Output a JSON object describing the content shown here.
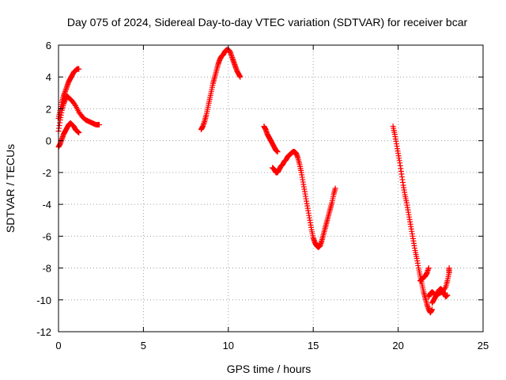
{
  "chart_data": {
    "type": "scatter",
    "title": "Day 075 of 2024, Sidereal Day-to-day VTEC variation (SDTVAR) for receiver bcar",
    "xlabel": "GPS time / hours",
    "ylabel": "SDTVAR / TECUs",
    "xlim": [
      0,
      25
    ],
    "ylim": [
      -12,
      6
    ],
    "xticks": [
      0,
      5,
      10,
      15,
      20,
      25
    ],
    "yticks": [
      -12,
      -10,
      -8,
      -6,
      -4,
      -2,
      0,
      2,
      4,
      6
    ],
    "grid": true,
    "marker": "plus",
    "color": "#ff0000",
    "series": [
      {
        "segments": [
          [
            [
              0.0,
              0.6
            ],
            [
              0.1,
              1.3
            ],
            [
              0.2,
              1.9
            ],
            [
              0.3,
              2.3
            ],
            [
              0.4,
              2.6
            ],
            [
              0.5,
              2.8
            ],
            [
              0.6,
              2.7
            ],
            [
              0.8,
              2.5
            ],
            [
              1.0,
              2.2
            ],
            [
              1.2,
              1.8
            ],
            [
              1.4,
              1.5
            ],
            [
              1.6,
              1.3
            ],
            [
              1.8,
              1.2
            ],
            [
              2.0,
              1.1
            ],
            [
              2.2,
              1.0
            ],
            [
              2.4,
              1.0
            ]
          ],
          [
            [
              0.0,
              1.4
            ],
            [
              0.1,
              1.9
            ],
            [
              0.2,
              2.4
            ],
            [
              0.3,
              2.8
            ],
            [
              0.4,
              3.1
            ],
            [
              0.5,
              3.4
            ],
            [
              0.6,
              3.7
            ],
            [
              0.7,
              3.9
            ],
            [
              0.8,
              4.1
            ],
            [
              0.9,
              4.3
            ],
            [
              1.0,
              4.4
            ],
            [
              1.1,
              4.5
            ],
            [
              1.2,
              4.5
            ]
          ],
          [
            [
              0.0,
              -0.4
            ],
            [
              0.1,
              -0.2
            ],
            [
              0.2,
              0.1
            ],
            [
              0.3,
              0.4
            ],
            [
              0.4,
              0.6
            ],
            [
              0.5,
              0.8
            ],
            [
              0.6,
              1.0
            ],
            [
              0.7,
              1.1
            ],
            [
              0.8,
              1.0
            ],
            [
              0.9,
              0.9
            ],
            [
              1.0,
              0.7
            ],
            [
              1.1,
              0.6
            ],
            [
              1.2,
              0.5
            ]
          ],
          [
            [
              8.4,
              0.7
            ],
            [
              8.5,
              0.9
            ],
            [
              8.6,
              1.2
            ],
            [
              8.7,
              1.6
            ],
            [
              8.8,
              2.1
            ],
            [
              8.9,
              2.6
            ],
            [
              9.0,
              3.1
            ],
            [
              9.1,
              3.6
            ],
            [
              9.2,
              4.0
            ],
            [
              9.3,
              4.4
            ],
            [
              9.4,
              4.8
            ],
            [
              9.5,
              5.1
            ],
            [
              9.6,
              5.3
            ],
            [
              9.7,
              5.4
            ],
            [
              9.8,
              5.6
            ],
            [
              9.9,
              5.7
            ],
            [
              10.0,
              5.7
            ],
            [
              10.1,
              5.6
            ],
            [
              10.2,
              5.3
            ],
            [
              10.3,
              5.0
            ],
            [
              10.4,
              4.7
            ],
            [
              10.5,
              4.4
            ],
            [
              10.6,
              4.2
            ],
            [
              10.7,
              4.0
            ]
          ],
          [
            [
              12.1,
              0.9
            ],
            [
              12.2,
              0.7
            ],
            [
              12.3,
              0.4
            ],
            [
              12.4,
              0.2
            ],
            [
              12.5,
              0.0
            ],
            [
              12.6,
              -0.2
            ],
            [
              12.7,
              -0.4
            ],
            [
              12.8,
              -0.6
            ],
            [
              12.9,
              -0.7
            ]
          ],
          [
            [
              12.6,
              -1.7
            ],
            [
              12.7,
              -1.8
            ],
            [
              12.8,
              -2.0
            ],
            [
              12.9,
              -2.0
            ],
            [
              13.0,
              -1.8
            ],
            [
              13.1,
              -1.6
            ],
            [
              13.2,
              -1.5
            ],
            [
              13.3,
              -1.3
            ],
            [
              13.4,
              -1.2
            ],
            [
              13.5,
              -1.0
            ],
            [
              13.6,
              -0.9
            ],
            [
              13.7,
              -0.8
            ],
            [
              13.8,
              -0.7
            ],
            [
              13.9,
              -0.7
            ],
            [
              14.0,
              -0.8
            ],
            [
              14.1,
              -1.1
            ],
            [
              14.2,
              -1.5
            ],
            [
              14.3,
              -2.0
            ],
            [
              14.4,
              -2.6
            ],
            [
              14.5,
              -3.2
            ],
            [
              14.6,
              -3.8
            ],
            [
              14.7,
              -4.4
            ],
            [
              14.8,
              -5.0
            ],
            [
              14.9,
              -5.6
            ],
            [
              15.0,
              -6.1
            ],
            [
              15.1,
              -6.4
            ],
            [
              15.2,
              -6.6
            ],
            [
              15.3,
              -6.7
            ],
            [
              15.4,
              -6.6
            ],
            [
              15.5,
              -6.3
            ],
            [
              15.6,
              -5.9
            ],
            [
              15.7,
              -5.5
            ],
            [
              15.8,
              -5.1
            ],
            [
              15.9,
              -4.7
            ],
            [
              16.0,
              -4.3
            ],
            [
              16.1,
              -3.9
            ],
            [
              16.2,
              -3.4
            ],
            [
              16.3,
              -3.0
            ]
          ],
          [
            [
              19.7,
              0.9
            ],
            [
              19.8,
              0.4
            ],
            [
              19.9,
              -0.2
            ],
            [
              20.0,
              -0.8
            ],
            [
              20.1,
              -1.4
            ],
            [
              20.2,
              -2.1
            ],
            [
              20.3,
              -2.8
            ],
            [
              20.4,
              -3.4
            ],
            [
              20.5,
              -3.9
            ],
            [
              20.6,
              -4.5
            ],
            [
              20.7,
              -5.1
            ],
            [
              20.8,
              -5.7
            ],
            [
              20.9,
              -6.3
            ],
            [
              21.0,
              -6.9
            ],
            [
              21.1,
              -7.4
            ],
            [
              21.2,
              -8.0
            ],
            [
              21.3,
              -8.5
            ],
            [
              21.4,
              -9.0
            ],
            [
              21.5,
              -9.5
            ],
            [
              21.6,
              -9.9
            ],
            [
              21.7,
              -10.3
            ],
            [
              21.8,
              -10.6
            ],
            [
              21.9,
              -10.8
            ],
            [
              22.0,
              -10.6
            ]
          ],
          [
            [
              21.3,
              -8.8
            ],
            [
              21.4,
              -8.7
            ],
            [
              21.5,
              -8.6
            ],
            [
              21.6,
              -8.5
            ],
            [
              21.7,
              -8.3
            ],
            [
              21.8,
              -8.0
            ]
          ],
          [
            [
              21.8,
              -9.8
            ],
            [
              21.9,
              -9.6
            ],
            [
              22.0,
              -9.5
            ],
            [
              22.1,
              -9.6
            ],
            [
              22.2,
              -9.7
            ],
            [
              22.3,
              -9.6
            ],
            [
              22.4,
              -9.4
            ],
            [
              22.5,
              -9.3
            ],
            [
              22.6,
              -9.4
            ],
            [
              22.7,
              -9.6
            ],
            [
              22.8,
              -9.8
            ],
            [
              22.9,
              -9.7
            ]
          ],
          [
            [
              22.0,
              -10.2
            ],
            [
              22.1,
              -10.0
            ],
            [
              22.2,
              -9.8
            ],
            [
              22.4,
              -9.6
            ],
            [
              22.6,
              -9.5
            ],
            [
              22.8,
              -9.2
            ],
            [
              22.9,
              -8.8
            ],
            [
              23.0,
              -8.3
            ],
            [
              23.0,
              -8.0
            ]
          ]
        ]
      }
    ]
  }
}
